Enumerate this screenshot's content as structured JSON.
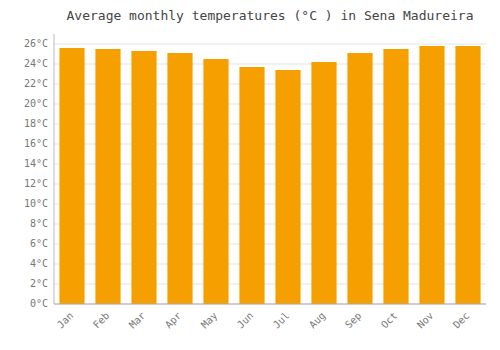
{
  "chart_data": {
    "type": "bar",
    "title": "Average monthly temperatures (°C ) in Sena Madureira",
    "categories": [
      "Jan",
      "Feb",
      "Mar",
      "Apr",
      "May",
      "Jun",
      "Jul",
      "Aug",
      "Sep",
      "Oct",
      "Nov",
      "Dec"
    ],
    "values": [
      25.6,
      25.5,
      25.3,
      25.1,
      24.5,
      23.7,
      23.4,
      24.2,
      25.1,
      25.5,
      25.8,
      25.8
    ],
    "color": "#F5A000",
    "ylim": [
      0,
      27
    ],
    "yticks": [
      {
        "value": 0,
        "label": "0°C"
      },
      {
        "value": 2,
        "label": "2°C"
      },
      {
        "value": 4,
        "label": "4°C"
      },
      {
        "value": 6,
        "label": "6°C"
      },
      {
        "value": 8,
        "label": "8°C"
      },
      {
        "value": 10,
        "label": "10°C"
      },
      {
        "value": 12,
        "label": "12°C"
      },
      {
        "value": 14,
        "label": "14°C"
      },
      {
        "value": 16,
        "label": "16°C"
      },
      {
        "value": 18,
        "label": "18°C"
      },
      {
        "value": 20,
        "label": "20°C"
      },
      {
        "value": 22,
        "label": "22°C"
      },
      {
        "value": 24,
        "label": "24°C"
      },
      {
        "value": 26,
        "label": "26°C"
      }
    ],
    "grid": true
  }
}
